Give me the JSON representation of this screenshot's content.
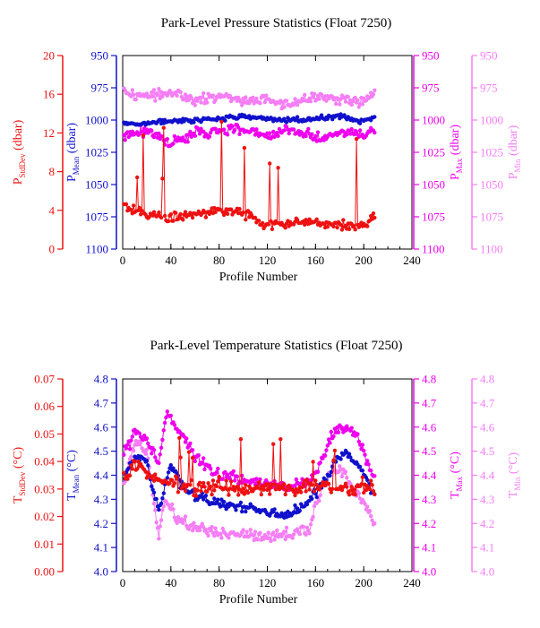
{
  "colors": {
    "stddev": "#ee1111",
    "mean": "#1010cc",
    "max": "#ee00ee",
    "min": "#f57ef5",
    "axis": "#000000"
  },
  "chart_data": [
    {
      "type": "line",
      "title": "Park-Level Pressure Statistics (Float 7250)",
      "xlabel": "Profile Number",
      "xlim": [
        0,
        240
      ],
      "xticks": [
        "0",
        "40",
        "80",
        "120",
        "160",
        "200",
        "240"
      ],
      "axes": {
        "stddev": {
          "label": "P",
          "sub": "StdDev",
          "unit": " (dbar)",
          "lim": [
            0,
            20
          ],
          "ticks": [
            "0",
            "4",
            "8",
            "12",
            "16",
            "20"
          ]
        },
        "mean": {
          "label": "P",
          "sub": "Mean",
          "unit": " (dbar)",
          "lim": [
            1100,
            950
          ],
          "ticks": [
            "950",
            "975",
            "1000",
            "1025",
            "1050",
            "1075",
            "1100"
          ]
        },
        "max": {
          "label": "P",
          "sub": "Max",
          "unit": " (dbar)",
          "lim": [
            1100,
            950
          ],
          "ticks": [
            "950",
            "975",
            "1000",
            "1025",
            "1050",
            "1075",
            "1100"
          ]
        },
        "min": {
          "label": "P",
          "sub": "Min",
          "unit": " (dbar)",
          "lim": [
            1100,
            950
          ],
          "ticks": [
            "950",
            "975",
            "1000",
            "1025",
            "1050",
            "1075",
            "1100"
          ]
        }
      },
      "series_profile": [
        {
          "key": "min",
          "x": [
            2,
            20,
            40,
            60,
            80,
            100,
            120,
            140,
            160,
            180,
            200,
            208
          ],
          "y": [
            978,
            982,
            978,
            985,
            982,
            986,
            984,
            988,
            982,
            984,
            986,
            978
          ]
        },
        {
          "key": "max",
          "x": [
            2,
            20,
            40,
            60,
            80,
            100,
            120,
            140,
            160,
            180,
            200,
            208
          ],
          "y": [
            1012,
            1008,
            1018,
            1010,
            1008,
            1006,
            1012,
            1008,
            1014,
            1010,
            1012,
            1008
          ]
        },
        {
          "key": "mean",
          "x": [
            2,
            20,
            40,
            60,
            80,
            100,
            120,
            140,
            160,
            180,
            200,
            208
          ],
          "y": [
            1003,
            1002,
            1001,
            1000,
            999,
            997,
            999,
            1000,
            999,
            997,
            1001,
            998
          ]
        },
        {
          "key": "stddev",
          "x": [
            2,
            20,
            40,
            60,
            80,
            100,
            120,
            140,
            160,
            180,
            200,
            208
          ],
          "y": [
            4.5,
            3.5,
            3.2,
            3.6,
            4.0,
            3.8,
            2.5,
            2.6,
            2.8,
            2.6,
            2.4,
            3.2
          ]
        }
      ]
    },
    {
      "type": "line",
      "title": "Park-Level Temperature Statistics (Float 7250)",
      "xlabel": "Profile Number",
      "xlim": [
        0,
        240
      ],
      "xticks": [
        "0",
        "40",
        "80",
        "120",
        "160",
        "200",
        "240"
      ],
      "axes": {
        "stddev": {
          "label": "T",
          "sub": "StdDev",
          "unit": " (°C)",
          "lim": [
            0,
            0.07
          ],
          "ticks": [
            "0.00",
            "0.01",
            "0.02",
            "0.03",
            "0.04",
            "0.05",
            "0.06",
            "0.07"
          ]
        },
        "mean": {
          "label": "T",
          "sub": "Mean",
          "unit": " (°C)",
          "lim": [
            4.0,
            4.8
          ],
          "ticks": [
            "4.0",
            "4.1",
            "4.2",
            "4.3",
            "4.4",
            "4.5",
            "4.6",
            "4.7",
            "4.8"
          ]
        },
        "max": {
          "label": "T",
          "sub": "Max",
          "unit": " (°C)",
          "lim": [
            4.0,
            4.8
          ],
          "ticks": [
            "4.0",
            "4.1",
            "4.2",
            "4.3",
            "4.4",
            "4.5",
            "4.6",
            "4.7",
            "4.8"
          ]
        },
        "min": {
          "label": "T",
          "sub": "Min",
          "unit": " (°C)",
          "lim": [
            4.0,
            4.8
          ],
          "ticks": [
            "4.0",
            "4.1",
            "4.2",
            "4.3",
            "4.4",
            "4.5",
            "4.6",
            "4.7",
            "4.8"
          ]
        }
      },
      "series_profile": [
        {
          "key": "min",
          "x": [
            2,
            10,
            20,
            30,
            35,
            45,
            60,
            80,
            100,
            120,
            140,
            155,
            165,
            175,
            185,
            195,
            208
          ],
          "y": [
            4.38,
            4.55,
            4.5,
            4.15,
            4.3,
            4.22,
            4.18,
            4.16,
            4.15,
            4.14,
            4.16,
            4.18,
            4.35,
            4.42,
            4.4,
            4.32,
            4.22
          ]
        },
        {
          "key": "max",
          "x": [
            2,
            10,
            20,
            30,
            37,
            45,
            60,
            80,
            100,
            120,
            140,
            155,
            165,
            175,
            185,
            195,
            208
          ],
          "y": [
            4.5,
            4.58,
            4.55,
            4.45,
            4.66,
            4.6,
            4.48,
            4.4,
            4.38,
            4.36,
            4.36,
            4.38,
            4.45,
            4.58,
            4.6,
            4.55,
            4.4
          ]
        },
        {
          "key": "mean",
          "x": [
            2,
            10,
            20,
            30,
            40,
            50,
            60,
            80,
            100,
            120,
            140,
            155,
            165,
            175,
            185,
            195,
            208
          ],
          "y": [
            4.4,
            4.48,
            4.45,
            4.25,
            4.45,
            4.35,
            4.32,
            4.28,
            4.27,
            4.24,
            4.24,
            4.3,
            4.35,
            4.45,
            4.5,
            4.45,
            4.32
          ]
        },
        {
          "key": "stddev",
          "x": [
            2,
            10,
            20,
            30,
            40,
            60,
            80,
            100,
            120,
            140,
            160,
            180,
            200,
            208
          ],
          "y": [
            0.034,
            0.04,
            0.036,
            0.034,
            0.032,
            0.03,
            0.031,
            0.03,
            0.03,
            0.03,
            0.031,
            0.03,
            0.031,
            0.03
          ]
        }
      ]
    }
  ]
}
